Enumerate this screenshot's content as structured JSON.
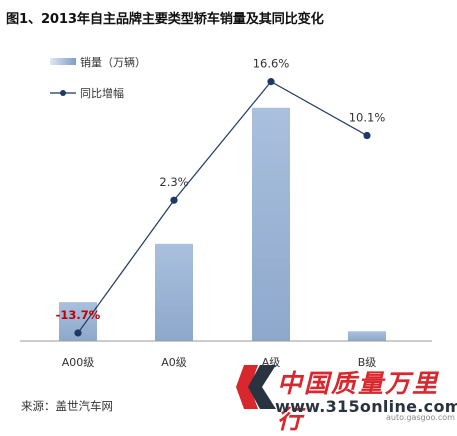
{
  "chart_data": {
    "type": "bar",
    "title": "图1、2013年自主品牌主要类型轿车销量及其同比变化",
    "categories": [
      "A00级",
      "A0级",
      "A级",
      "B级"
    ],
    "series": [
      {
        "name": "销量（万辆）",
        "kind": "bar",
        "color": "#9bb3d3",
        "values": [
          20,
          50,
          120,
          5
        ]
      },
      {
        "name": "同比增幅",
        "kind": "line",
        "color": "#1f3864",
        "values": [
          -13.7,
          2.3,
          16.6,
          10.1
        ],
        "labels": [
          "-13.7%",
          "2.3%",
          "16.6%",
          "10.1%"
        ],
        "label_colors": [
          "#c00000",
          "#333333",
          "#333333",
          "#333333"
        ]
      }
    ],
    "bar_range": [
      0,
      124
    ],
    "line_range": [
      -16,
      18
    ],
    "grid": false,
    "legend": "top-left"
  },
  "source": "来源：盖世汽车网",
  "watermark": {
    "cn": "中国质量万里行",
    "url": "www.315online.com",
    "sub": "auto.gasgoo.com"
  }
}
